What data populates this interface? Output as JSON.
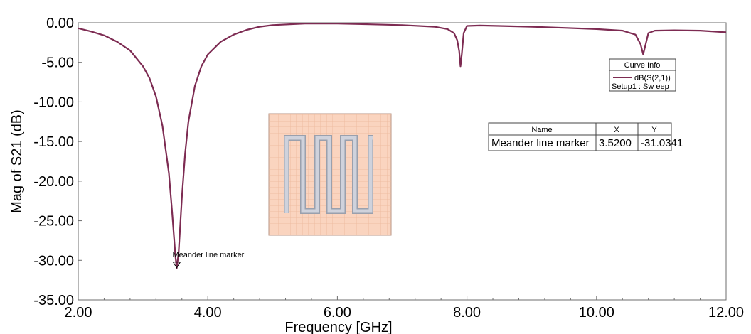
{
  "chart_data": {
    "type": "line",
    "title": "",
    "xlabel": "Frequency [GHz]",
    "ylabel": "Mag of S21 (dB)",
    "xlim": [
      2.0,
      12.0
    ],
    "ylim": [
      -35.0,
      0.0
    ],
    "x_ticks": [
      "2.00",
      "4.00",
      "6.00",
      "8.00",
      "10.00",
      "12.00"
    ],
    "y_ticks": [
      "0.00",
      "-5.00",
      "-10.00",
      "-15.00",
      "-20.00",
      "-25.00",
      "-30.00",
      "-35.00"
    ],
    "grid": false,
    "series": [
      {
        "name": "dB(S(2,1))",
        "color": "#7d2b52",
        "x": [
          2.0,
          2.2,
          2.4,
          2.6,
          2.8,
          3.0,
          3.1,
          3.2,
          3.3,
          3.4,
          3.45,
          3.5,
          3.52,
          3.55,
          3.6,
          3.65,
          3.7,
          3.8,
          3.9,
          4.0,
          4.2,
          4.4,
          4.6,
          4.8,
          5.0,
          5.5,
          6.0,
          6.5,
          7.0,
          7.5,
          7.7,
          7.8,
          7.85,
          7.88,
          7.9,
          7.92,
          7.95,
          8.0,
          8.2,
          8.5,
          9.0,
          9.5,
          10.0,
          10.4,
          10.6,
          10.68,
          10.72,
          10.75,
          10.8,
          10.9,
          11.2,
          11.6,
          12.0
        ],
        "y": [
          -0.7,
          -1.1,
          -1.6,
          -2.4,
          -3.5,
          -5.5,
          -7.0,
          -9.3,
          -13.0,
          -19.0,
          -24.0,
          -29.5,
          -31.0,
          -29.0,
          -22.0,
          -16.5,
          -12.5,
          -8.0,
          -5.5,
          -4.0,
          -2.4,
          -1.5,
          -0.9,
          -0.5,
          -0.3,
          -0.1,
          -0.1,
          -0.2,
          -0.3,
          -0.5,
          -0.8,
          -1.3,
          -2.2,
          -3.6,
          -5.5,
          -4.0,
          -1.3,
          -0.4,
          -0.35,
          -0.4,
          -0.5,
          -0.65,
          -0.8,
          -1.0,
          -1.5,
          -2.7,
          -4.0,
          -3.0,
          -1.3,
          -1.0,
          -0.95,
          -1.0,
          -1.2
        ]
      }
    ],
    "marker": {
      "label": "Meander line marker",
      "x": 3.52,
      "y": -31.0341
    },
    "legend": {
      "title": "Curve Info",
      "entry": "dB(S(2,1))",
      "setup": "Setup1 : Sw eep",
      "placement": "top-right"
    },
    "marker_table": {
      "headers": [
        "Name",
        "X",
        "Y"
      ],
      "rows": [
        [
          "Meander line marker",
          "3.5200",
          "-31.0341"
        ]
      ]
    }
  }
}
